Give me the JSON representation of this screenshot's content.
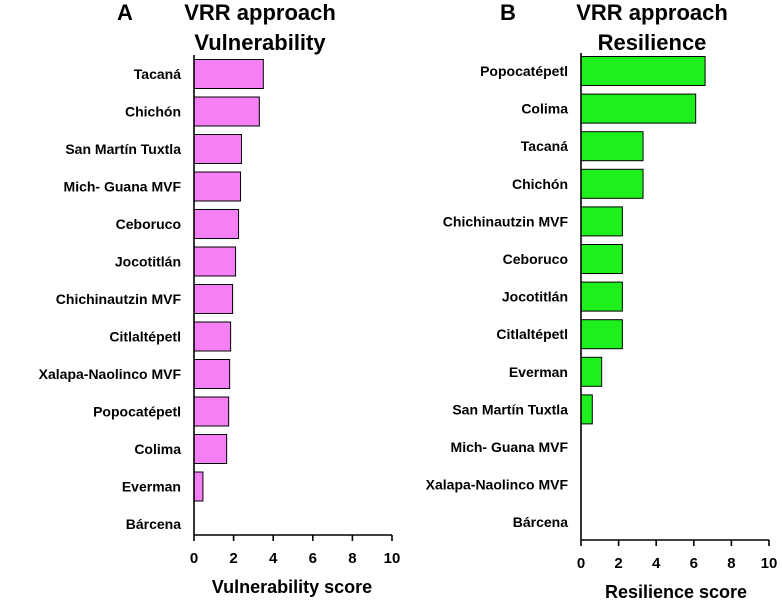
{
  "chart_data": [
    {
      "type": "bar",
      "orientation": "horizontal",
      "panel": "A",
      "title": "VRR approach",
      "subtitle": "Vulnerability",
      "xlabel": "Vulnerability score",
      "ylabel": "",
      "xlim": [
        0,
        10
      ],
      "xticks": [
        0,
        2,
        4,
        6,
        8,
        10
      ],
      "bar_color": "#f57ff5",
      "categories": [
        "Tacaná",
        "Chichón",
        "San Martín Tuxtla",
        "Mich- Guana MVF",
        "Ceboruco",
        "Jocotitlán",
        "Chichinautzin MVF",
        "Citlaltépetl",
        "Xalapa-Naolinco MVF",
        "Popocatépetl",
        "Colima",
        "Everman",
        "Bárcena"
      ],
      "values": [
        3.5,
        3.3,
        2.4,
        2.35,
        2.25,
        2.1,
        1.95,
        1.85,
        1.8,
        1.75,
        1.65,
        0.45,
        0
      ]
    },
    {
      "type": "bar",
      "orientation": "horizontal",
      "panel": "B",
      "title": "VRR approach",
      "subtitle": "Resilience",
      "xlabel": "Resilience score",
      "ylabel": "",
      "xlim": [
        0,
        10
      ],
      "xticks": [
        0,
        2,
        4,
        6,
        8,
        10
      ],
      "bar_color": "#1ef01e",
      "categories": [
        "Popocatépetl",
        "Colima",
        "Tacaná",
        "Chichón",
        "Chichinautzin MVF",
        "Ceboruco",
        "Jocotitlán",
        "Citlaltépetl",
        "Everman",
        "San Martín Tuxtla",
        "Mich- Guana MVF",
        "Xalapa-Naolinco MVF",
        "Bárcena"
      ],
      "values": [
        6.6,
        6.1,
        3.3,
        3.3,
        2.2,
        2.2,
        2.2,
        2.2,
        1.1,
        0.6,
        0,
        0,
        0
      ]
    }
  ]
}
